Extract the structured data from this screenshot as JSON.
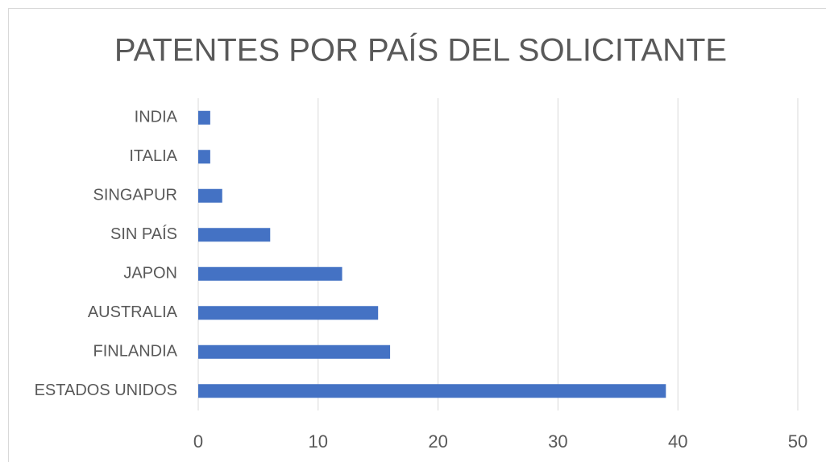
{
  "chart_data": {
    "type": "bar",
    "orientation": "horizontal",
    "title": "PATENTES POR PAÍS DEL SOLICITANTE",
    "categories": [
      "INDIA",
      "ITALIA",
      "SINGAPUR",
      "SIN PAÍS",
      "JAPON",
      "AUSTRALIA",
      "FINLANDIA",
      "ESTADOS UNIDOS"
    ],
    "values": [
      1,
      1,
      2,
      6,
      12,
      15,
      16,
      39
    ],
    "color": "#4472c4",
    "xlim": [
      0,
      50
    ],
    "xticks": [
      0,
      10,
      20,
      30,
      40,
      50
    ],
    "grid": true
  }
}
